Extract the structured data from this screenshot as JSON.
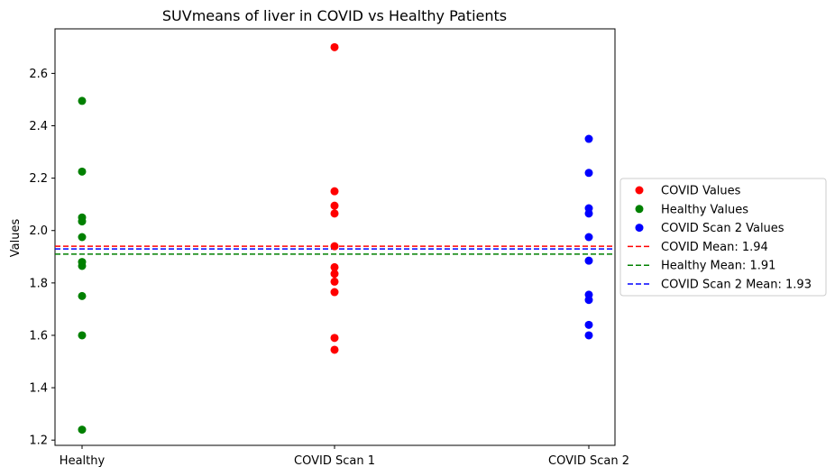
{
  "chart_data": {
    "type": "scatter",
    "title": "SUVmeans of liver in COVID vs Healthy Patients",
    "xlabel": "",
    "ylabel": "Values",
    "categories": [
      "Healthy",
      "COVID Scan 1",
      "COVID Scan 2"
    ],
    "ylim": [
      1.18,
      2.77
    ],
    "yticks": [
      "1.2",
      "1.4",
      "1.6",
      "1.8",
      "2.0",
      "2.2",
      "2.4",
      "2.6"
    ],
    "grid": false,
    "legend_position": "outside-right",
    "series": [
      {
        "name": "COVID Values",
        "color": "#ff0000",
        "category": "COVID Scan 1",
        "values": [
          2.7,
          2.15,
          2.095,
          2.065,
          1.94,
          1.86,
          1.835,
          1.805,
          1.765,
          1.59,
          1.545
        ]
      },
      {
        "name": "Healthy Values",
        "color": "#008000",
        "category": "Healthy",
        "values": [
          2.495,
          2.225,
          2.05,
          2.035,
          1.975,
          1.88,
          1.865,
          1.75,
          1.6,
          1.24
        ]
      },
      {
        "name": "COVID Scan 2 Values",
        "color": "#0000ff",
        "category": "COVID Scan 2",
        "values": [
          2.35,
          2.22,
          2.085,
          2.065,
          1.975,
          1.885,
          1.755,
          1.735,
          1.64,
          1.6
        ]
      }
    ],
    "reference_lines": [
      {
        "name": "COVID Mean: 1.94",
        "value": 1.94,
        "color": "#ff0000",
        "style": "dashed"
      },
      {
        "name": "Healthy Mean: 1.91",
        "value": 1.91,
        "color": "#008000",
        "style": "dashed"
      },
      {
        "name": "COVID Scan 2 Mean: 1.93",
        "value": 1.93,
        "color": "#0000ff",
        "style": "dashed"
      }
    ]
  }
}
